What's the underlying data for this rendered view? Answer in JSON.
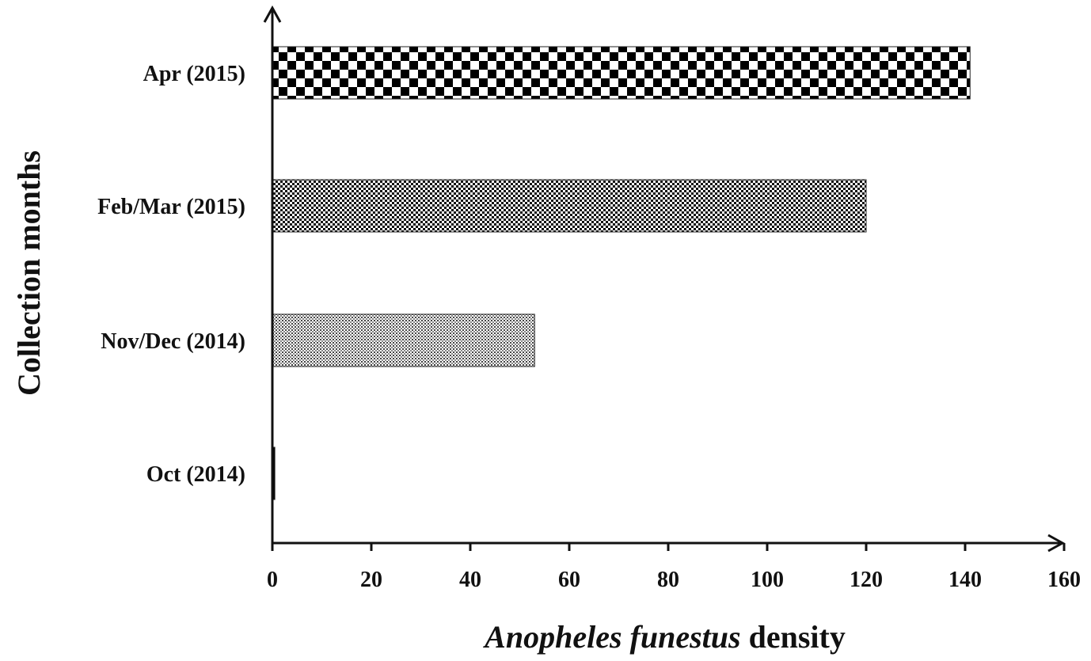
{
  "chart_data": {
    "type": "bar",
    "orientation": "horizontal",
    "title": "",
    "categories": [
      "Oct (2014)",
      "Nov/Dec (2014)",
      "Feb/Mar (2015)",
      "Apr (2015)"
    ],
    "values": [
      0.5,
      53,
      120,
      141
    ],
    "xlabel_italic": "Anopheles funestus",
    "xlabel_rest": " density",
    "ylabel": "Collection months",
    "xlim": [
      0,
      160
    ],
    "xticks": [
      "0",
      "20",
      "40",
      "60",
      "80",
      "100",
      "120",
      "140",
      "160"
    ],
    "grid": false,
    "legend": "none",
    "bar_patterns": [
      "solid-black",
      "fine-dots",
      "fine-checker",
      "large-checker"
    ]
  }
}
